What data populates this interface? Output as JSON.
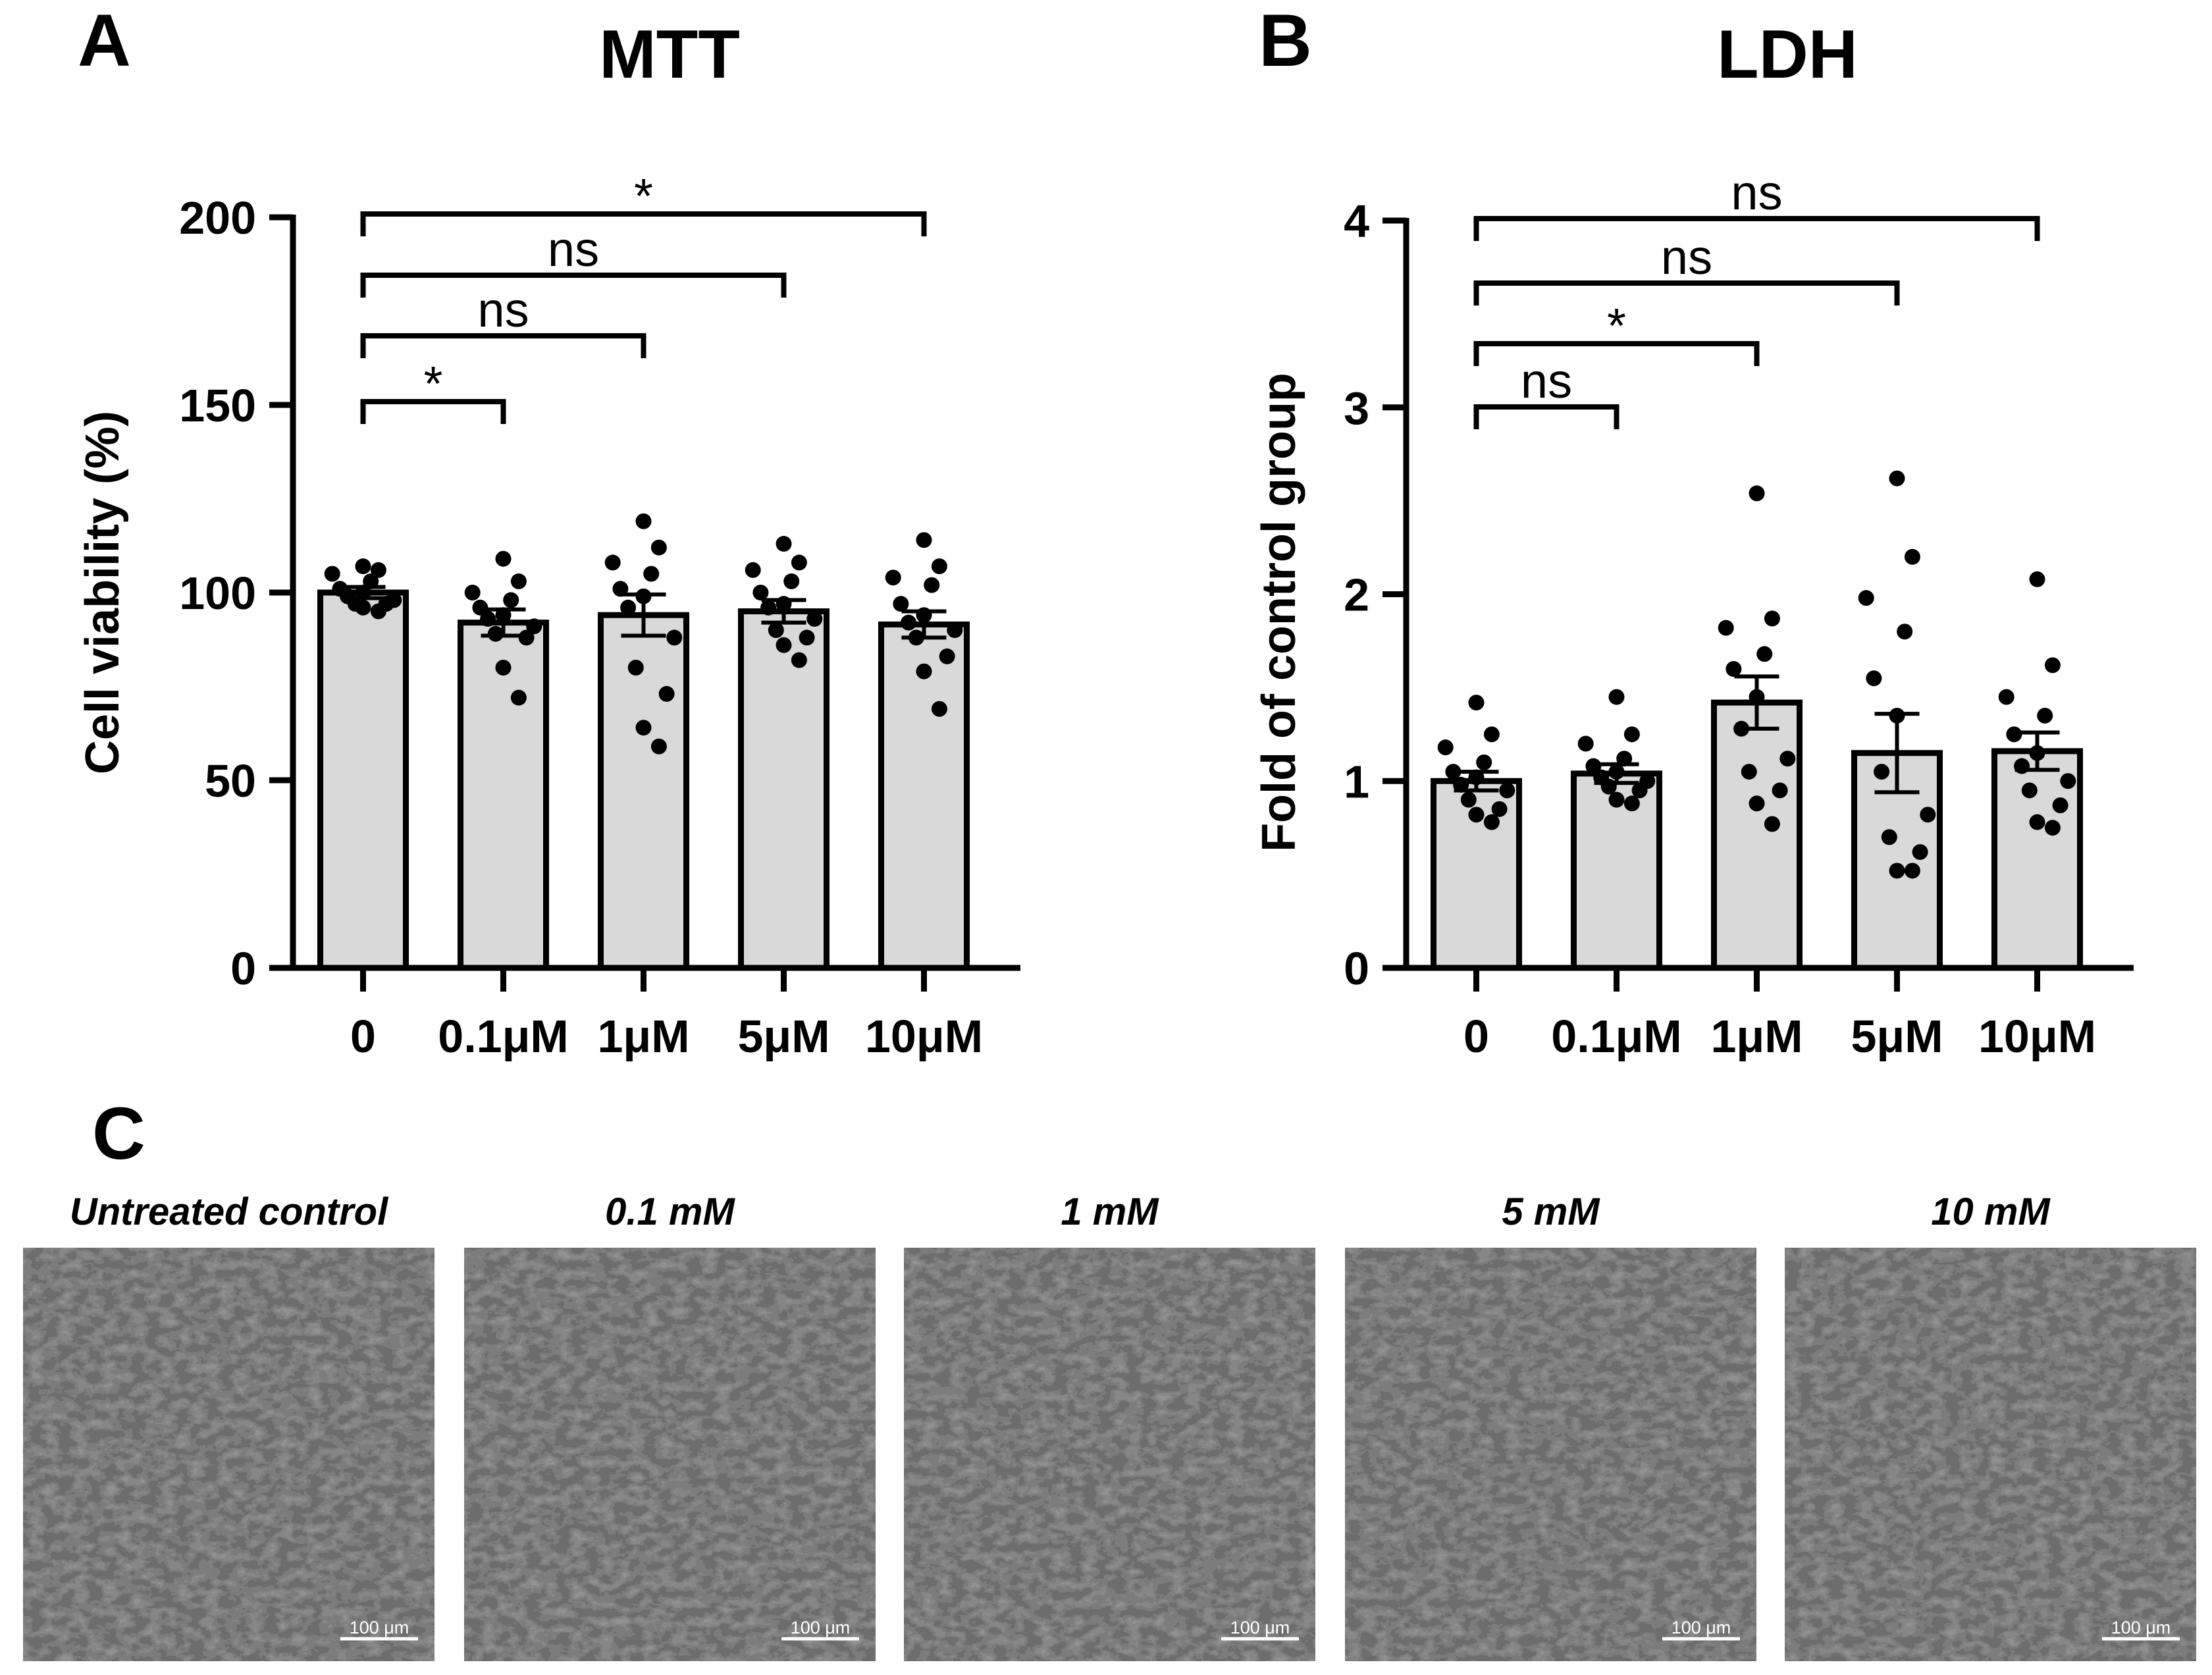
{
  "panels": {
    "a": {
      "label": "A"
    },
    "b": {
      "label": "B"
    },
    "c": {
      "label": "C"
    }
  },
  "chart_data": [
    {
      "type": "bar",
      "title": "MTT",
      "ylabel": "Cell viability (%)",
      "xlabel": "",
      "categories": [
        "0",
        "0.1μM",
        "1μM",
        "5μM",
        "10μM"
      ],
      "values": [
        100,
        92,
        94,
        95,
        91.5
      ],
      "sem": [
        1.5,
        3.5,
        5.5,
        3,
        3.5
      ],
      "points": [
        [
          107,
          106,
          105,
          103,
          101,
          100,
          99,
          98,
          97,
          97,
          96,
          95
        ],
        [
          109,
          103,
          100,
          98,
          96,
          94,
          93,
          91,
          89,
          88,
          80,
          72
        ],
        [
          119,
          112,
          108,
          105,
          101,
          99,
          96,
          88,
          80,
          73,
          64,
          59
        ],
        [
          113,
          108,
          106,
          103,
          100,
          97,
          96,
          93,
          90,
          88,
          86,
          82
        ],
        [
          114,
          107,
          104,
          102,
          97,
          94,
          92,
          90,
          88,
          83,
          79,
          69
        ]
      ],
      "ylim": [
        0,
        200
      ],
      "yticks": [
        0,
        50,
        100,
        150,
        200
      ],
      "grid": false,
      "significance": [
        {
          "from": 0,
          "to": 1,
          "label": "*"
        },
        {
          "from": 0,
          "to": 2,
          "label": "ns"
        },
        {
          "from": 0,
          "to": 3,
          "label": "ns"
        },
        {
          "from": 0,
          "to": 4,
          "label": "*"
        }
      ]
    },
    {
      "type": "bar",
      "title": "LDH",
      "ylabel": "Fold of control group",
      "xlabel": "",
      "categories": [
        "0",
        "0.1μM",
        "1μM",
        "5μM",
        "10μM"
      ],
      "values": [
        1.0,
        1.04,
        1.42,
        1.15,
        1.16
      ],
      "sem": [
        0.05,
        0.05,
        0.14,
        0.21,
        0.1
      ],
      "points": [
        [
          1.42,
          1.25,
          1.18,
          1.1,
          1.05,
          1.02,
          0.98,
          0.95,
          0.9,
          0.85,
          0.82,
          0.78
        ],
        [
          1.45,
          1.25,
          1.2,
          1.12,
          1.08,
          1.05,
          1.02,
          1.0,
          0.97,
          0.95,
          0.9,
          0.88
        ],
        [
          2.54,
          1.87,
          1.82,
          1.68,
          1.6,
          1.45,
          1.28,
          1.12,
          1.05,
          0.95,
          0.88,
          0.77
        ],
        [
          2.62,
          2.2,
          1.98,
          1.8,
          1.55,
          1.35,
          1.05,
          0.82,
          0.7,
          0.62,
          0.52,
          0.52
        ],
        [
          2.08,
          1.62,
          1.45,
          1.35,
          1.25,
          1.15,
          1.08,
          1.0,
          0.95,
          0.87,
          0.78,
          0.75
        ]
      ],
      "ylim": [
        0,
        4
      ],
      "yticks": [
        0,
        1,
        2,
        3,
        4
      ],
      "grid": false,
      "significance": [
        {
          "from": 0,
          "to": 1,
          "label": "ns"
        },
        {
          "from": 0,
          "to": 2,
          "label": "*"
        },
        {
          "from": 0,
          "to": 3,
          "label": "ns"
        },
        {
          "from": 0,
          "to": 4,
          "label": "ns"
        }
      ]
    }
  ],
  "micrographs": [
    {
      "title": "Untreated control",
      "scale_bar": "100 μm"
    },
    {
      "title": "0.1 mM",
      "scale_bar": "100 μm"
    },
    {
      "title": "1 mM",
      "scale_bar": "100 μm"
    },
    {
      "title": "5 mM",
      "scale_bar": "100 μm"
    },
    {
      "title": "10 mM",
      "scale_bar": "100 μm"
    }
  ]
}
